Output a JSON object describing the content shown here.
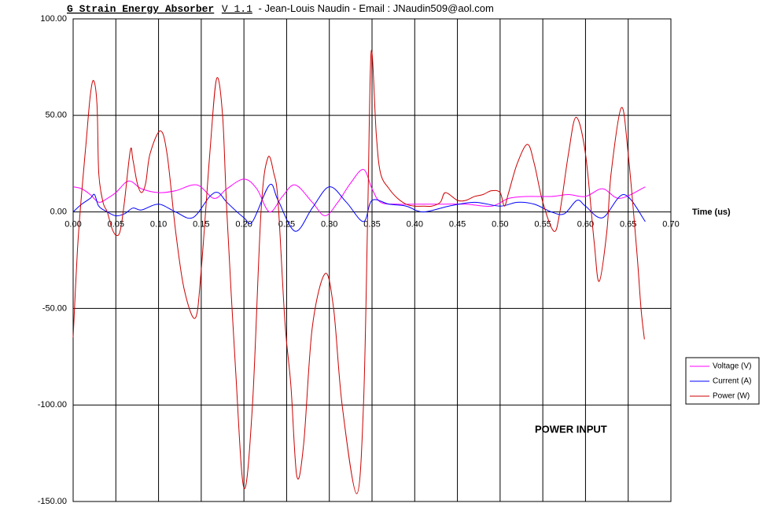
{
  "chart_data": {
    "type": "line",
    "title": "G Strain Energy Absorber",
    "version": "V 1.1",
    "subtitle": "- Jean-Louis Naudin - Email : JNaudin509@aol.com",
    "x_label": "Time (us)",
    "annotation": "POWER INPUT",
    "xlim": [
      0,
      0.7
    ],
    "ylim": [
      -150,
      100
    ],
    "xticks": [
      {
        "value": 0,
        "label": "0.00"
      },
      {
        "value": 0.05,
        "label": "0.05"
      },
      {
        "value": 0.1,
        "label": "0.10"
      },
      {
        "value": 0.15,
        "label": "0.15"
      },
      {
        "value": 0.2,
        "label": "0.20"
      },
      {
        "value": 0.25,
        "label": "0.25"
      },
      {
        "value": 0.3,
        "label": "0.30"
      },
      {
        "value": 0.35,
        "label": "0.35"
      },
      {
        "value": 0.4,
        "label": "0.40"
      },
      {
        "value": 0.45,
        "label": "0.45"
      },
      {
        "value": 0.5,
        "label": "0.50"
      },
      {
        "value": 0.55,
        "label": "0.55"
      },
      {
        "value": 0.6,
        "label": "0.60"
      },
      {
        "value": 0.65,
        "label": "0.65"
      },
      {
        "value": 0.7,
        "label": "0.70"
      }
    ],
    "yticks": [
      {
        "value": 100,
        "label": "100.00"
      },
      {
        "value": 50,
        "label": "50.00"
      },
      {
        "value": 0,
        "label": "0.00"
      },
      {
        "value": -50,
        "label": "-50.00"
      },
      {
        "value": -100,
        "label": "-100.00"
      },
      {
        "value": -150,
        "label": "-150.00"
      }
    ],
    "grid": true,
    "legend": "right",
    "series": [
      {
        "name": "Voltage (V)",
        "color": "#ff00ff",
        "x": [
          0,
          0.01,
          0.02,
          0.03,
          0.04,
          0.05,
          0.065,
          0.08,
          0.1,
          0.12,
          0.145,
          0.165,
          0.18,
          0.2,
          0.215,
          0.23,
          0.245,
          0.26,
          0.28,
          0.295,
          0.31,
          0.325,
          0.34,
          0.35,
          0.36,
          0.38,
          0.4,
          0.43,
          0.46,
          0.49,
          0.51,
          0.53,
          0.56,
          0.58,
          0.6,
          0.62,
          0.64,
          0.67
        ],
        "values": [
          13,
          12,
          9,
          5,
          7,
          10,
          16,
          12,
          10,
          11,
          14,
          7,
          12,
          17,
          12,
          0,
          8,
          14,
          5,
          -2,
          5,
          15,
          22,
          12,
          5,
          4,
          4,
          4,
          4,
          3,
          7,
          8,
          8,
          9,
          8,
          12,
          7,
          13
        ]
      },
      {
        "name": "Current (A)",
        "color": "#0000ff",
        "x": [
          0,
          0.01,
          0.02,
          0.025,
          0.03,
          0.04,
          0.05,
          0.06,
          0.07,
          0.08,
          0.1,
          0.12,
          0.14,
          0.16,
          0.17,
          0.18,
          0.2,
          0.21,
          0.23,
          0.24,
          0.26,
          0.28,
          0.3,
          0.32,
          0.34,
          0.35,
          0.37,
          0.39,
          0.41,
          0.44,
          0.47,
          0.5,
          0.52,
          0.54,
          0.56,
          0.575,
          0.59,
          0.6,
          0.62,
          0.645,
          0.67
        ],
        "values": [
          0,
          4,
          7,
          9,
          3,
          0,
          -2,
          -1,
          2,
          1,
          4,
          0,
          -3,
          8,
          10,
          5,
          -3,
          -5,
          14,
          6,
          -10,
          2,
          13,
          5,
          -5,
          6,
          4,
          3,
          0,
          3,
          5,
          3,
          5,
          4,
          0,
          -1,
          6,
          3,
          -3,
          9,
          -5
        ]
      },
      {
        "name": "Power (W)",
        "color": "#cc0000",
        "x": [
          0,
          0.005,
          0.01,
          0.015,
          0.02,
          0.024,
          0.028,
          0.03,
          0.035,
          0.04,
          0.045,
          0.05,
          0.055,
          0.06,
          0.067,
          0.07,
          0.075,
          0.08,
          0.085,
          0.09,
          0.102,
          0.11,
          0.12,
          0.13,
          0.143,
          0.15,
          0.16,
          0.168,
          0.175,
          0.18,
          0.19,
          0.2,
          0.21,
          0.22,
          0.228,
          0.235,
          0.24,
          0.248,
          0.255,
          0.262,
          0.27,
          0.28,
          0.295,
          0.305,
          0.315,
          0.332,
          0.34,
          0.345,
          0.349,
          0.355,
          0.36,
          0.37,
          0.38,
          0.39,
          0.4,
          0.41,
          0.42,
          0.43,
          0.436,
          0.45,
          0.46,
          0.47,
          0.48,
          0.49,
          0.5,
          0.505,
          0.51,
          0.52,
          0.532,
          0.54,
          0.55,
          0.563,
          0.57,
          0.58,
          0.589,
          0.6,
          0.61,
          0.616,
          0.625,
          0.63,
          0.642,
          0.65,
          0.66,
          0.665,
          0.669
        ],
        "values": [
          -65,
          -20,
          10,
          35,
          60,
          68,
          55,
          20,
          5,
          0,
          -8,
          -12,
          -10,
          5,
          32,
          27,
          15,
          10,
          15,
          30,
          42,
          30,
          -10,
          -40,
          -55,
          -30,
          30,
          69,
          50,
          0,
          -80,
          -143,
          -100,
          0,
          28,
          20,
          5,
          -57,
          -90,
          -137,
          -120,
          -60,
          -32,
          -50,
          -100,
          -146,
          -100,
          0,
          83,
          40,
          20,
          12,
          7,
          4,
          3,
          3,
          3,
          5,
          10,
          6,
          6,
          8,
          9,
          11,
          10,
          3,
          10,
          25,
          35,
          25,
          5,
          -10,
          0,
          30,
          49,
          30,
          -15,
          -36,
          -10,
          20,
          54,
          30,
          -20,
          -50,
          -66
        ]
      }
    ]
  }
}
